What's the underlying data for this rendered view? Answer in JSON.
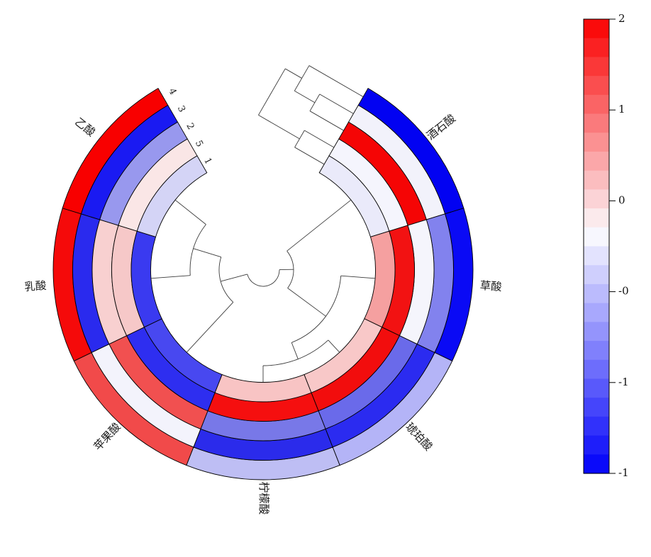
{
  "chart_data": {
    "type": "heatmap",
    "layout": "circular annular heatmap with row dendrogram (top gap) and column cladogram (center)",
    "title": "",
    "ring_labels_outer_to_inner": [
      "4",
      "3",
      "2",
      "5",
      "1"
    ],
    "sectors": [
      {
        "label": "酒石酸",
        "colors_outer_to_inner": [
          "#0202f2",
          "#f2f2fb",
          "#f50505",
          "#f5f5fd",
          "#eaeafa"
        ]
      },
      {
        "label": "草酸",
        "colors_outer_to_inner": [
          "#0a0af5",
          "#8282ee",
          "#f5f5fc",
          "#f21212",
          "#f5a0a0"
        ]
      },
      {
        "label": "琥珀酸",
        "colors_outer_to_inner": [
          "#b4b4f7",
          "#2b2bf0",
          "#6a6aea",
          "#f20d0d",
          "#f8c8c8"
        ]
      },
      {
        "label": "柠檬酸",
        "colors_outer_to_inner": [
          "#bebef4",
          "#2b2beb",
          "#7878e8",
          "#f50f0f",
          "#f8c4c4"
        ]
      },
      {
        "label": "苹果酸",
        "colors_outer_to_inner": [
          "#f14a4a",
          "#f3f3fc",
          "#f15050",
          "#2e2ef0",
          "#4848f0"
        ]
      },
      {
        "label": "乳酸",
        "colors_outer_to_inner": [
          "#f50a0a",
          "#2a2aee",
          "#f8d0d0",
          "#f6c8c8",
          "#3a3af0"
        ]
      },
      {
        "label": "乙酸",
        "colors_outer_to_inner": [
          "#f80000",
          "#1a1af2",
          "#9898ee",
          "#fae6e6",
          "#d4d4f6"
        ]
      }
    ],
    "colorbar": {
      "tick_labels": [
        "2",
        "1",
        "0",
        "-0",
        "-1",
        "-1"
      ],
      "top_color": "#fa0000",
      "middle_color": "#fbfbfe",
      "bottom_color": "#0000fa",
      "steps": 24
    },
    "row_dendrogram": {
      "topology": "((4,(3,2)),(5,1))",
      "tree": {
        "d": 115,
        "children": [
          {
            "d": 88,
            "children": [
              {
                "leaf": 0
              },
              {
                "d": 55,
                "children": [
                  {
                    "leaf": 1
                  },
                  {
                    "leaf": 2
                  }
                ]
              }
            ]
          },
          {
            "d": 48,
            "children": [
              {
                "leaf": 3
              },
              {
                "leaf": 4
              }
            ]
          }
        ]
      }
    },
    "col_dendrogram": {
      "topology": "((酒石酸,(草酸,(琥珀酸,柠檬酸))),(苹果酸,(乳酸,乙酸)))",
      "tree": {
        "r": 23,
        "children": [
          {
            "r": 43,
            "children": [
              {
                "leaf": 0
              },
              {
                "r": 110,
                "children": [
                  {
                    "leaf": 1
                  },
                  {
                    "r": 135,
                    "children": [
                      {
                        "leaf": 2
                      },
                      {
                        "leaf": 3
                      }
                    ]
                  }
                ]
              }
            ]
          },
          {
            "r": 62,
            "children": [
              {
                "leaf": 4
              },
              {
                "r": 103,
                "children": [
                  {
                    "leaf": 5
                  },
                  {
                    "leaf": 6
                  }
                ]
              }
            ]
          }
        ]
      }
    }
  }
}
